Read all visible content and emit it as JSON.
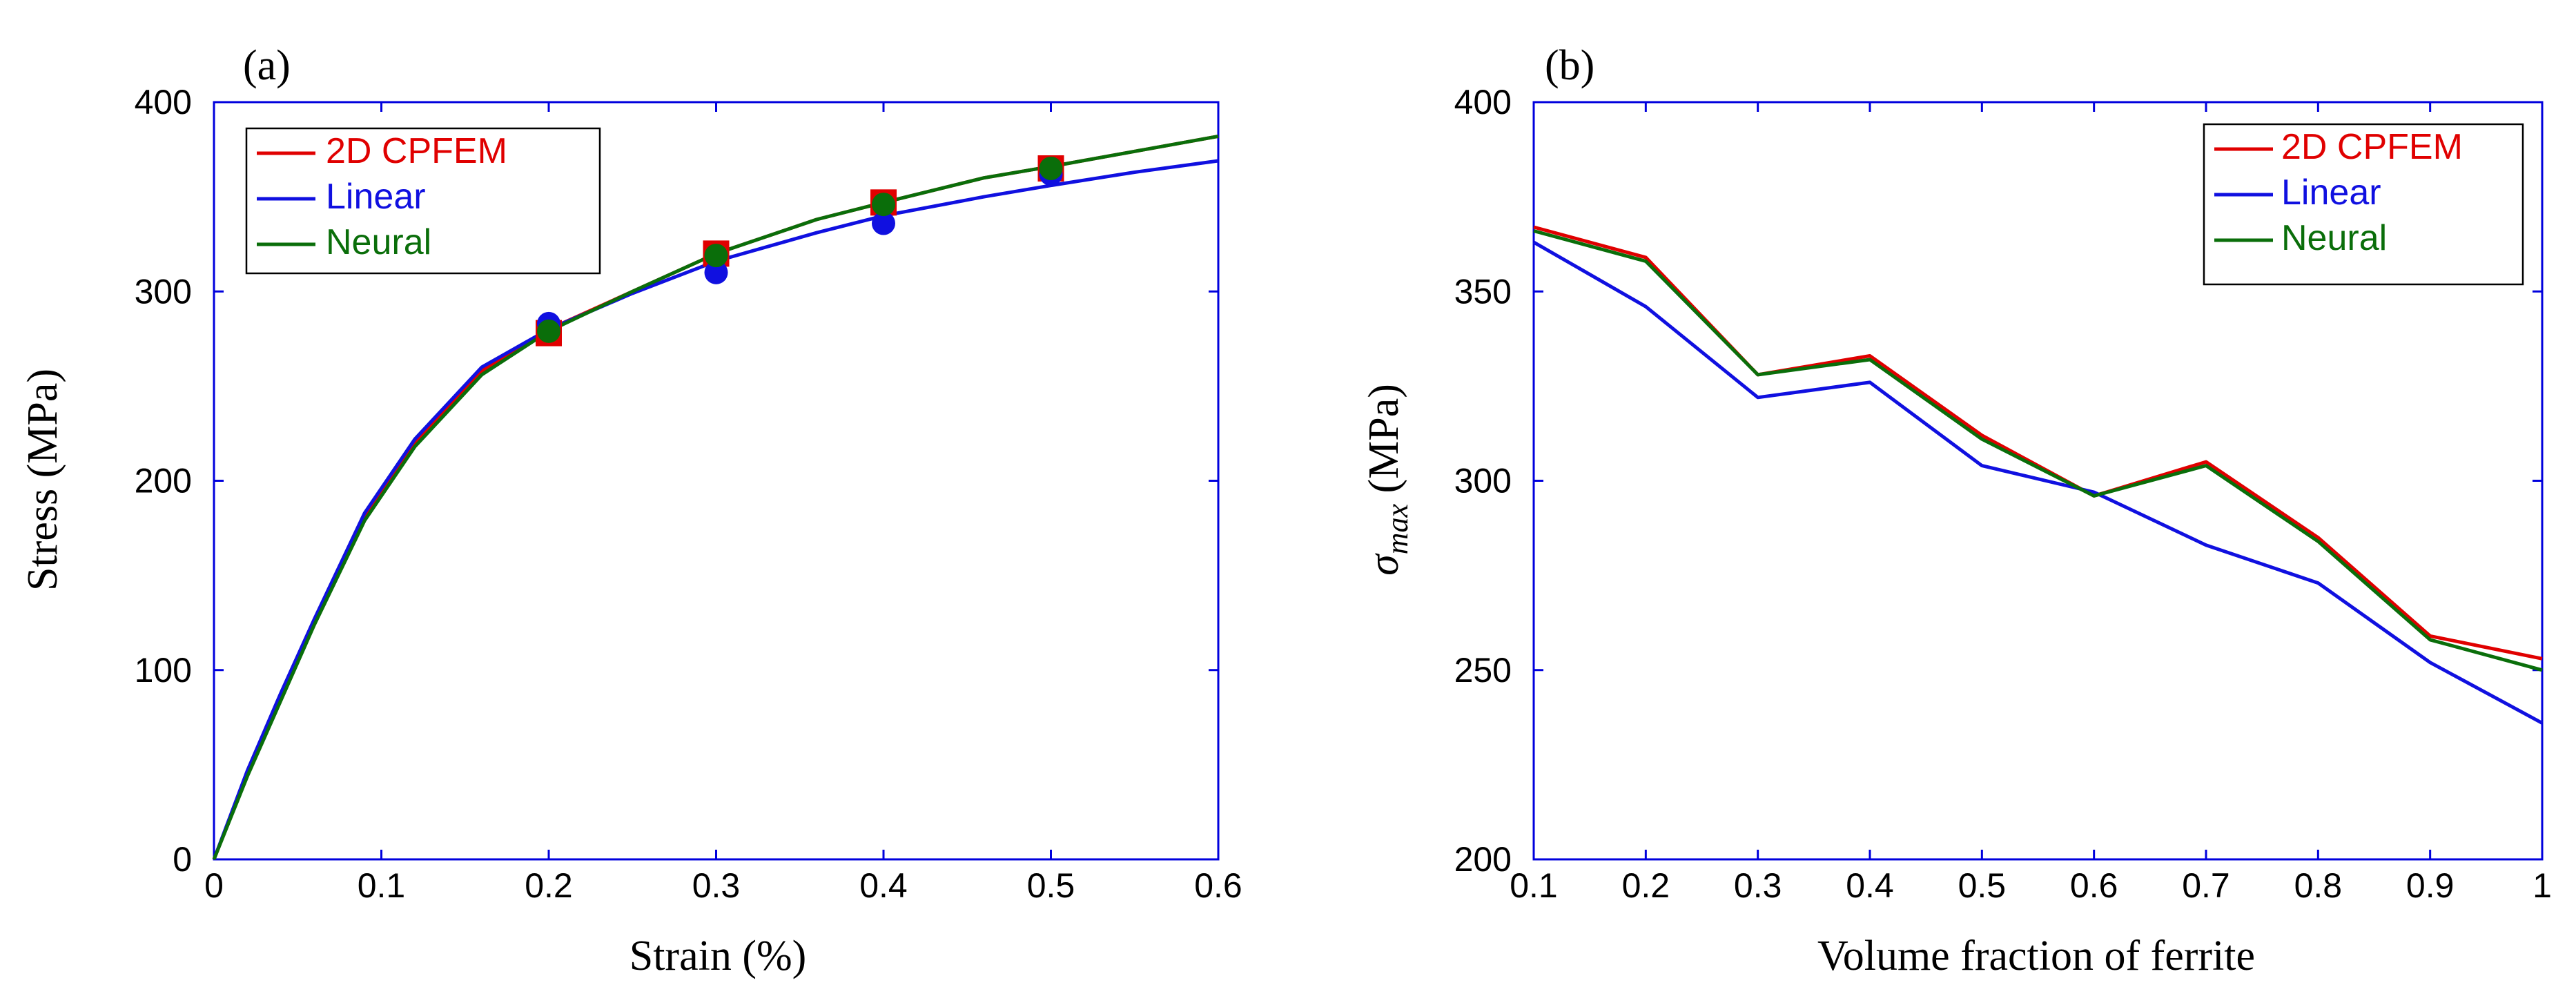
{
  "chart_data": [
    {
      "type": "line",
      "panel_label": "(a)",
      "xlabel": "Strain (%)",
      "ylabel": "Stress (MPa)",
      "xlim": [
        0,
        0.6
      ],
      "ylim": [
        0,
        400
      ],
      "x_ticks": [
        0,
        0.1,
        0.2,
        0.3,
        0.4,
        0.5,
        0.6
      ],
      "y_ticks": [
        0,
        100,
        200,
        300,
        400
      ],
      "x_tick_labels": [
        "0",
        "0.1",
        "0.2",
        "0.3",
        "0.4",
        "0.5",
        "0.6"
      ],
      "y_tick_labels": [
        "0",
        "100",
        "200",
        "300",
        "400"
      ],
      "legend_position": "top-left",
      "series": [
        {
          "name": "2D CPFEM",
          "color": "#e00000",
          "x": [
            0,
            0.02,
            0.04,
            0.06,
            0.09,
            0.12,
            0.16,
            0.2,
            0.25,
            0.3,
            0.36,
            0.4,
            0.46,
            0.5,
            0.55,
            0.6
          ],
          "y": [
            0,
            45,
            85,
            125,
            180,
            220,
            258,
            280,
            300,
            320,
            338,
            347,
            360,
            366,
            374,
            382
          ]
        },
        {
          "name": "Linear",
          "color": "#1010e0",
          "x": [
            0,
            0.02,
            0.04,
            0.06,
            0.09,
            0.12,
            0.16,
            0.2,
            0.25,
            0.3,
            0.36,
            0.4,
            0.46,
            0.5,
            0.55,
            0.6
          ],
          "y": [
            0,
            47,
            88,
            127,
            183,
            222,
            260,
            280,
            299,
            316,
            331,
            340,
            350,
            356,
            363,
            369
          ]
        },
        {
          "name": "Neural",
          "color": "#0a6e0a",
          "x": [
            0,
            0.02,
            0.04,
            0.06,
            0.09,
            0.12,
            0.16,
            0.2,
            0.25,
            0.3,
            0.36,
            0.4,
            0.46,
            0.5,
            0.55,
            0.6
          ],
          "y": [
            0,
            44,
            84,
            124,
            179,
            218,
            256,
            279,
            300,
            320,
            338,
            347,
            360,
            366,
            374,
            382
          ]
        }
      ],
      "markers": [
        {
          "series": "2D CPFEM",
          "shape": "square",
          "color": "#e00000",
          "x": [
            0.2,
            0.3,
            0.4,
            0.5
          ],
          "y": [
            278,
            320,
            347,
            365
          ]
        },
        {
          "series": "Linear",
          "shape": "circle",
          "color": "#1010e0",
          "x": [
            0.2,
            0.3,
            0.4,
            0.5
          ],
          "y": [
            283,
            310,
            336,
            362
          ]
        },
        {
          "series": "Neural",
          "shape": "circle",
          "color": "#0a6e0a",
          "x": [
            0.2,
            0.3,
            0.4,
            0.5
          ],
          "y": [
            279,
            319,
            346,
            365
          ]
        }
      ]
    },
    {
      "type": "line",
      "panel_label": "(b)",
      "xlabel": "Volume fraction of ferrite",
      "ylabel_symbol": "σ",
      "ylabel_subscript": "max",
      "ylabel_unit": "(MPa)",
      "xlim": [
        0.1,
        1
      ],
      "ylim": [
        200,
        400
      ],
      "x_ticks": [
        0.1,
        0.2,
        0.3,
        0.4,
        0.5,
        0.6,
        0.7,
        0.8,
        0.9,
        1
      ],
      "y_ticks": [
        200,
        250,
        300,
        350,
        400
      ],
      "x_tick_labels": [
        "0.1",
        "0.2",
        "0.3",
        "0.4",
        "0.5",
        "0.6",
        "0.7",
        "0.8",
        "0.9",
        "1"
      ],
      "y_tick_labels": [
        "200",
        "250",
        "300",
        "350",
        "400"
      ],
      "legend_position": "top-right",
      "series": [
        {
          "name": "2D CPFEM",
          "color": "#e00000",
          "x": [
            0.1,
            0.2,
            0.3,
            0.4,
            0.5,
            0.6,
            0.7,
            0.8,
            0.9,
            1.0
          ],
          "y": [
            367,
            359,
            328,
            333,
            312,
            296,
            305,
            285,
            259,
            253
          ]
        },
        {
          "name": "Linear",
          "color": "#1010e0",
          "x": [
            0.1,
            0.2,
            0.3,
            0.4,
            0.5,
            0.6,
            0.7,
            0.8,
            0.9,
            1.0
          ],
          "y": [
            363,
            346,
            322,
            326,
            304,
            297,
            283,
            273,
            252,
            236
          ]
        },
        {
          "name": "Neural",
          "color": "#0a6e0a",
          "x": [
            0.1,
            0.2,
            0.3,
            0.4,
            0.5,
            0.6,
            0.7,
            0.8,
            0.9,
            1.0
          ],
          "y": [
            366,
            358,
            328,
            332,
            311,
            296,
            304,
            284,
            258,
            250
          ]
        }
      ]
    }
  ]
}
